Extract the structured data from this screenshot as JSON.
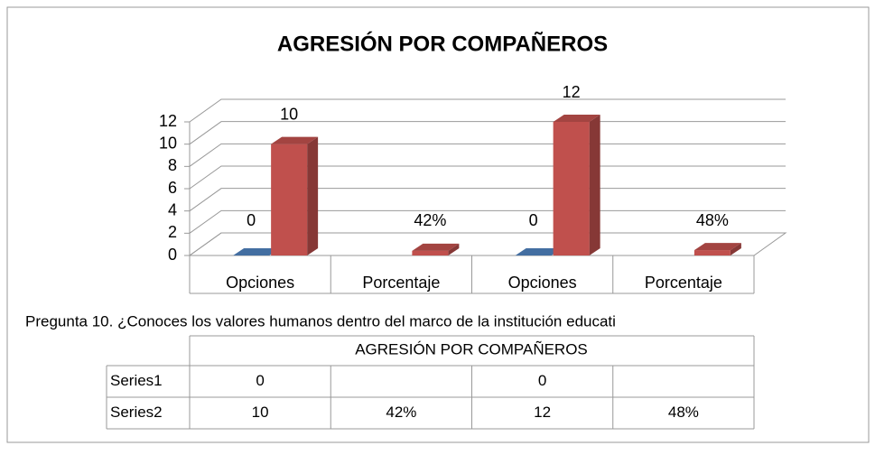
{
  "chart_data": {
    "type": "bar3d",
    "title": "AGRESIÓN POR COMPAÑEROS",
    "subtitle": "Pregunta 10. ¿Conoces los valores humanos dentro del marco de la institución educati",
    "table_title": "AGRESIÓN POR COMPAÑEROS",
    "categories": [
      "Opciones",
      "Porcentaje",
      "Opciones",
      "Porcentaje"
    ],
    "series": [
      {
        "name": "Series1",
        "color": "#4f81bd",
        "values": [
          0,
          null,
          0,
          null
        ]
      },
      {
        "name": "Series2",
        "color": "#c0504d",
        "values": [
          10,
          0.42,
          12,
          0.48
        ],
        "value_labels": [
          "10",
          "42%",
          "12",
          "48%"
        ]
      }
    ],
    "ylim": [
      0,
      12
    ],
    "yticks": [
      0,
      2,
      4,
      6,
      8,
      10,
      12
    ],
    "grid": true
  }
}
